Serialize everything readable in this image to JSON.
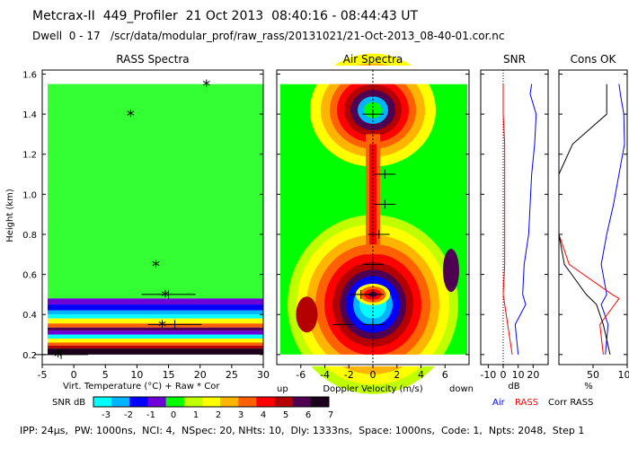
{
  "header": {
    "title": "Metcrax-II  449_Profiler  21 Oct 2013  08:40:16 - 08:44:43 UT",
    "dwell": "Dwell  0 - 17   /scr/data/modular_prof/raw_rass/20131021/21-Oct-2013_08-40-01.cor.nc"
  },
  "footer": "IPP: 24μs,  PW: 1000ns,  NCI: 4,  NSpec: 20, NHts: 10,  Dly: 1333ns,  Space: 1000ns,  Code: 1,  Npts: 2048,  Step 1",
  "colors": {
    "snr_scale": [
      "#00ffff",
      "#00b4ff",
      "#0000ff",
      "#7000d8",
      "#00ff00",
      "#c0ff00",
      "#ffff00",
      "#ffb400",
      "#ff6000",
      "#ff0000",
      "#b40000",
      "#500050",
      "#1a001a"
    ],
    "air": "#0000ff",
    "rass": "#ff0000",
    "corr": "#000000",
    "background_field": "#33ff33"
  },
  "chart_data": [
    {
      "type": "heatmap",
      "title": "RASS Spectra",
      "xlabel": "Virt. Temperature (°C)  + Raw  * Cor",
      "ylabel": "Height (km)",
      "xlim": [
        -5,
        30
      ],
      "ylim": [
        0.15,
        1.62
      ],
      "x_ticks": [
        "-5",
        "0",
        "5",
        "10",
        "15",
        "20",
        "25",
        "30"
      ],
      "y_ticks": [
        "0.2",
        "0.4",
        "0.6",
        "0.8",
        "1.0",
        "1.2",
        "1.4",
        "1.6"
      ],
      "corrected_points": [
        [
          -2.5,
          0.2
        ],
        [
          14,
          0.35
        ],
        [
          14.5,
          0.5
        ],
        [
          13,
          0.65
        ],
        [
          9,
          1.4
        ],
        [
          21,
          1.55
        ]
      ],
      "raw_points": [
        [
          -2,
          0.2
        ],
        [
          16,
          0.35
        ],
        [
          15,
          0.5
        ]
      ]
    },
    {
      "type": "heatmap",
      "title": "Air Spectra",
      "xlabel": "Doppler Velocity (m/s)",
      "x_left_label": "up",
      "x_right_label": "down",
      "xlim": [
        -8,
        8
      ],
      "x_ticks": [
        "-6",
        "-4",
        "-2",
        "0",
        "2",
        "4",
        "6"
      ],
      "markers": [
        [
          -2.5,
          0.35
        ],
        [
          0,
          0.35
        ],
        [
          0,
          0.5
        ],
        [
          -1,
          0.5
        ],
        [
          0,
          0.65
        ],
        [
          0.5,
          0.8
        ],
        [
          1,
          0.95
        ],
        [
          1,
          1.1
        ],
        [
          0,
          1.4
        ]
      ]
    },
    {
      "type": "line",
      "title": "SNR",
      "xlabel": "dB",
      "xlim": [
        -15,
        30
      ],
      "x_ticks": [
        "-10",
        "0",
        "10",
        "20"
      ],
      "series": [
        {
          "name": "Air",
          "x": [
            10,
            8,
            15,
            13,
            14,
            17,
            18,
            19,
            21,
            22,
            18,
            19
          ],
          "y": [
            0.2,
            0.35,
            0.45,
            0.5,
            0.65,
            0.8,
            0.95,
            1.1,
            1.25,
            1.4,
            1.5,
            1.55
          ]
        },
        {
          "name": "RASS",
          "x": [
            6,
            3,
            1,
            0,
            1,
            1,
            1,
            1,
            1,
            0,
            0,
            0
          ],
          "y": [
            0.2,
            0.35,
            0.45,
            0.5,
            0.65,
            0.8,
            0.95,
            1.1,
            1.25,
            1.4,
            1.5,
            1.55
          ]
        }
      ]
    },
    {
      "type": "line",
      "title": "Cons OK",
      "xlabel": "%",
      "xlim": [
        0,
        100
      ],
      "x_ticks": [
        "50",
        "100"
      ],
      "series": [
        {
          "name": "Air",
          "x": [
            68,
            72,
            62,
            70,
            62,
            70,
            80,
            88,
            96,
            95,
            90,
            88
          ],
          "y": [
            0.2,
            0.35,
            0.45,
            0.5,
            0.65,
            0.8,
            0.95,
            1.1,
            1.25,
            1.4,
            1.5,
            1.55
          ]
        },
        {
          "name": "RASS",
          "x": [
            65,
            60,
            88,
            78,
            15,
            0,
            0,
            0,
            0,
            0,
            0,
            0
          ],
          "y": [
            0.2,
            0.35,
            0.48,
            0.5,
            0.65,
            0.8,
            0.95,
            1.1,
            1.25,
            1.4,
            1.5,
            1.55
          ]
        },
        {
          "name": "Corr RASS",
          "x": [
            75,
            65,
            55,
            40,
            8,
            0,
            0,
            0,
            20,
            70,
            70,
            70
          ],
          "y": [
            0.2,
            0.35,
            0.45,
            0.5,
            0.65,
            0.8,
            0.95,
            1.1,
            1.25,
            1.4,
            1.5,
            1.55
          ]
        }
      ]
    }
  ],
  "colorbar": {
    "label": "SNR dB",
    "ticks": [
      "-3",
      "-2",
      "-1",
      "0",
      "1",
      "2",
      "3",
      "4",
      "5",
      "6",
      "7"
    ]
  },
  "legend": [
    "Air",
    "RASS",
    "Corr RASS"
  ]
}
